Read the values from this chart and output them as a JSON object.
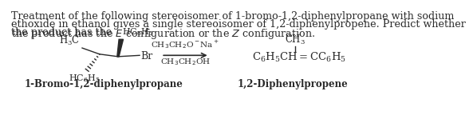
{
  "bg_color": "#ffffff",
  "text_color": "#2a2a2a",
  "paragraph_line1": "Treatment of the following stereoisomer of 1-bromo-1,2-diphenylpropane with sodium",
  "paragraph_line2": "ethoxide in ethanol gives a single stereoisomer of 1,2-diphenylpropene. Predict whether",
  "paragraph_line3_before_E": "the product has the ",
  "paragraph_line3_E": "E",
  "paragraph_line3_mid": " configuration or the ",
  "paragraph_line3_Z": "Z",
  "paragraph_line3_after": " configuration.",
  "paragraph_fontsize": 9.2,
  "reagent_line1": "CH$_3$CH$_2$O$^-$Na$^+$",
  "reagent_line2": "CH$_3$CH$_2$OH",
  "label_left": "1-Bromo-1,2-diphenylpropane",
  "label_right": "1,2-Diphenylpropene",
  "label_fontsize": 8.5
}
